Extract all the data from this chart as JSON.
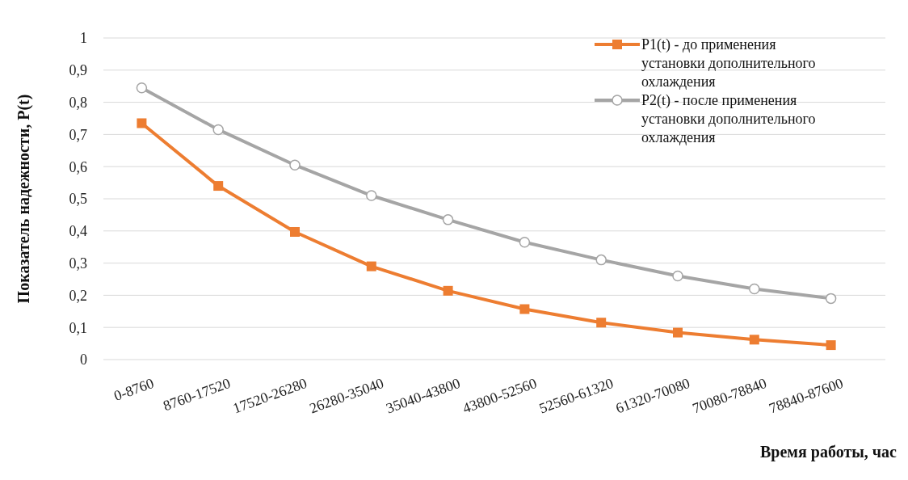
{
  "chart_data": {
    "type": "line",
    "xlabel": "Время работы, час",
    "ylabel": "Показатель надежности, P(t)",
    "categories": [
      "0-8760",
      "8760-17520",
      "17520-26280",
      "26280-35040",
      "35040-43800",
      "43800-52560",
      "52560-61320",
      "61320-70080",
      "70080-78840",
      "78840-87600"
    ],
    "series": [
      {
        "name": "P1(t) - до применения установки дополнительного охлаждения",
        "color": "#ed7d31",
        "marker": "square",
        "values": [
          0.735,
          0.54,
          0.397,
          0.29,
          0.214,
          0.157,
          0.115,
          0.084,
          0.062,
          0.045
        ]
      },
      {
        "name": "P2(t) - после применения установки дополнительного охлаждения",
        "color": "#a5a5a5",
        "marker": "circle",
        "values": [
          0.845,
          0.715,
          0.605,
          0.51,
          0.435,
          0.365,
          0.31,
          0.26,
          0.22,
          0.19
        ]
      }
    ],
    "ylim": [
      0,
      1
    ],
    "yticks": [
      {
        "value": 0,
        "label": "0"
      },
      {
        "value": 0.1,
        "label": "0,1"
      },
      {
        "value": 0.2,
        "label": "0,2"
      },
      {
        "value": 0.3,
        "label": "0,3"
      },
      {
        "value": 0.4,
        "label": "0,4"
      },
      {
        "value": 0.5,
        "label": "0,5"
      },
      {
        "value": 0.6,
        "label": "0,6"
      },
      {
        "value": 0.7,
        "label": "0,7"
      },
      {
        "value": 0.8,
        "label": "0,8"
      },
      {
        "value": 0.9,
        "label": "0,9"
      },
      {
        "value": 1,
        "label": "1"
      }
    ],
    "grid": "y",
    "legend": "top right",
    "line_style": "solid"
  }
}
